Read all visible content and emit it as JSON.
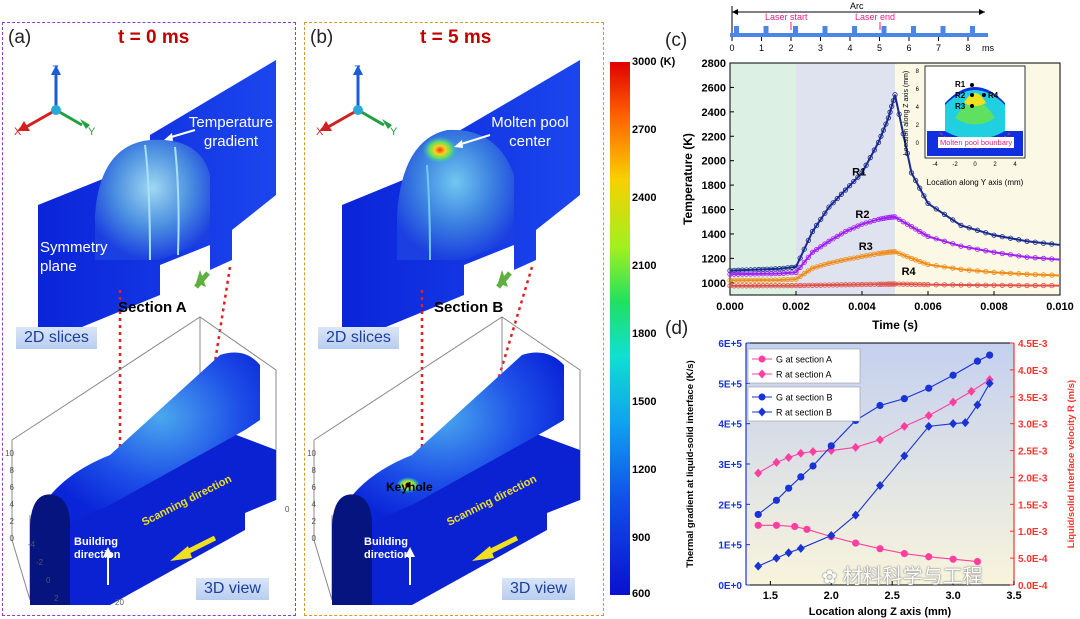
{
  "panel_a": {
    "label": "(a)",
    "title": "t = 0 ms",
    "annotation": "Temperature gradient",
    "symmetry": "Symmetry plane",
    "section": "Section A",
    "slices_tag": "2D slices",
    "view_tag": "3D view",
    "building": "Building direction",
    "scanning": "Scanning direction"
  },
  "panel_b": {
    "label": "(b)",
    "title": "t = 5 ms",
    "annotation": "Molten pool center",
    "section": "Section B",
    "slices_tag": "2D slices",
    "view_tag": "3D view",
    "keyhole": "Keyhole",
    "building": "Building direction",
    "scanning": "Scanning direction"
  },
  "axes_triad": {
    "z": "Z",
    "x": "X",
    "y": "Y"
  },
  "view3d_ticks": {
    "left": [
      "10",
      "8",
      "6",
      "4",
      "2",
      "0"
    ],
    "bottom": [
      "-4",
      "-2",
      "0",
      "2",
      "4"
    ],
    "depth": [
      "0",
      "5",
      "10",
      "15",
      "20"
    ]
  },
  "colorbar": {
    "unit": "(K)",
    "ticks": [
      "3000",
      "2700",
      "2400",
      "2100",
      "1800",
      "1500",
      "1200",
      "900",
      "600"
    ]
  },
  "panel_c": {
    "label": "(c)",
    "timeline_title": "Arc",
    "laser_start": "Laser start",
    "laser_end": "Laser end",
    "timeline_ticks": [
      "0",
      "1",
      "2",
      "3",
      "4",
      "5",
      "6",
      "7",
      "8"
    ],
    "timeline_unit": "ms",
    "inset_ylabel": "Location along Z axis (mm)",
    "inset_xlabel": "Location along Y axis (mm)",
    "inset_yticks": [
      "8",
      "6",
      "4",
      "2",
      "0"
    ],
    "inset_xticks": [
      "-4",
      "-2",
      "0",
      "2",
      "4"
    ],
    "inset_boundary": "Molten pool bounbary",
    "inset_points": [
      "R1",
      "R2",
      "R3",
      "R4"
    ]
  },
  "panel_d": {
    "label": "(d)",
    "watermark": "材料科学与工程"
  },
  "chart_data": [
    {
      "type": "line",
      "title": "",
      "xlabel": "Time (s)",
      "ylabel": "Temperature (K)",
      "xlim": [
        0,
        0.01
      ],
      "ylim": [
        900,
        2800
      ],
      "xticks": [
        "0.000",
        "0.002",
        "0.004",
        "0.006",
        "0.008",
        "0.010"
      ],
      "yticks": [
        "1000",
        "1200",
        "1400",
        "1600",
        "1800",
        "2000",
        "2200",
        "2400",
        "2600",
        "2800"
      ],
      "x": [
        0,
        0.0005,
        0.001,
        0.0015,
        0.002,
        0.0025,
        0.003,
        0.0035,
        0.004,
        0.0045,
        0.0048,
        0.005,
        0.0055,
        0.006,
        0.007,
        0.008,
        0.009,
        0.01
      ],
      "series": [
        {
          "name": "R1",
          "color": "#1a2a8c",
          "values": [
            1100,
            1105,
            1110,
            1115,
            1130,
            1420,
            1620,
            1760,
            1900,
            2150,
            2350,
            2540,
            1900,
            1650,
            1470,
            1390,
            1340,
            1310
          ]
        },
        {
          "name": "R2",
          "color": "#a020f0",
          "values": [
            1070,
            1072,
            1074,
            1076,
            1085,
            1250,
            1340,
            1420,
            1480,
            1520,
            1535,
            1540,
            1460,
            1380,
            1300,
            1250,
            1210,
            1190
          ]
        },
        {
          "name": "R3",
          "color": "#f08c1a",
          "values": [
            1020,
            1021,
            1022,
            1023,
            1030,
            1120,
            1160,
            1190,
            1215,
            1240,
            1250,
            1255,
            1200,
            1150,
            1110,
            1085,
            1070,
            1060
          ]
        },
        {
          "name": "R4",
          "color": "#e0504a",
          "values": [
            975,
            975,
            976,
            976,
            977,
            980,
            982,
            984,
            986,
            988,
            989,
            990,
            988,
            985,
            982,
            980,
            978,
            977
          ]
        }
      ],
      "shaded_regions": [
        {
          "from": 0,
          "to": 0.002,
          "color": "#ddf0e4"
        },
        {
          "from": 0.002,
          "to": 0.005,
          "color": "#dfe3ef"
        },
        {
          "from": 0.005,
          "to": 0.01,
          "color": "#fbf8e6"
        }
      ]
    },
    {
      "type": "line",
      "title": "",
      "xlabel": "Location along Z axis (mm)",
      "ylabel": "Thermal gradient at liquid-solid interface (K/s)",
      "y2label": "Liquid/solid interface velocity R (m/s)",
      "xlim": [
        1.3,
        3.5
      ],
      "ylim": [
        0,
        600000
      ],
      "y2lim": [
        0.0,
        0.0045
      ],
      "xticks": [
        "1.5",
        "2.0",
        "2.5",
        "3.0",
        "3.5"
      ],
      "yticks": [
        "0E+0",
        "1E+5",
        "2E+5",
        "3E+5",
        "4E+5",
        "5E+5",
        "6E+5"
      ],
      "y2ticks": [
        "0.0E-4",
        "5.0E-4",
        "1.0E-3",
        "1.5E-3",
        "2.0E-3",
        "2.5E-3",
        "3.0E-3",
        "3.5E-3",
        "4.0E-3",
        "4.5E-3"
      ],
      "series": [
        {
          "name": "G at section A",
          "axis": "left",
          "marker": "circle",
          "color": "#ff3fa0",
          "x": [
            1.4,
            1.55,
            1.7,
            1.8,
            2.0,
            2.2,
            2.4,
            2.6,
            2.8,
            3.0,
            3.2
          ],
          "values": [
            148000,
            148000,
            145000,
            138000,
            120000,
            104000,
            90000,
            78000,
            70000,
            64000,
            58000
          ]
        },
        {
          "name": "R at section A",
          "axis": "right",
          "marker": "diamond",
          "color": "#ff3fa0",
          "x": [
            1.4,
            1.55,
            1.65,
            1.75,
            1.85,
            2.0,
            2.2,
            2.4,
            2.6,
            2.8,
            3.0,
            3.15,
            3.3
          ],
          "values": [
            0.00208,
            0.00228,
            0.00237,
            0.00245,
            0.00248,
            0.0025,
            0.00256,
            0.0027,
            0.00295,
            0.00315,
            0.0034,
            0.0036,
            0.00382
          ]
        },
        {
          "name": "G at section B",
          "axis": "left",
          "marker": "circle",
          "color": "#1a33d6",
          "x": [
            1.4,
            1.55,
            1.65,
            1.75,
            1.85,
            2.0,
            2.2,
            2.4,
            2.6,
            2.8,
            3.0,
            3.2,
            3.3
          ],
          "values": [
            175000,
            210000,
            240000,
            268000,
            295000,
            345000,
            408000,
            445000,
            462000,
            488000,
            520000,
            555000,
            570000
          ]
        },
        {
          "name": "R at section B",
          "axis": "right",
          "marker": "diamond",
          "color": "#1a33d6",
          "x": [
            1.4,
            1.55,
            1.65,
            1.75,
            2.0,
            2.2,
            2.4,
            2.6,
            2.8,
            3.0,
            3.1,
            3.2,
            3.3
          ],
          "values": [
            0.00035,
            0.0005,
            0.0006,
            0.00068,
            0.00092,
            0.0013,
            0.00185,
            0.0024,
            0.00295,
            0.003,
            0.00302,
            0.00335,
            0.00375
          ]
        }
      ],
      "legend_position": "top-left"
    }
  ]
}
